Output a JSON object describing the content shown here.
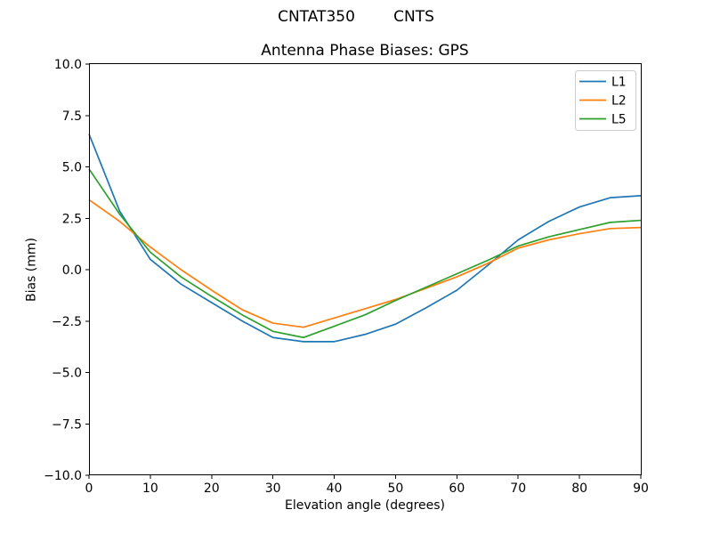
{
  "figure": {
    "suptitle": "CNTAT350        CNTS",
    "background": "#ffffff"
  },
  "chart_data": {
    "type": "line",
    "title": "Antenna Phase Biases: GPS",
    "xlabel": "Elevation angle (degrees)",
    "ylabel": "Bias (mm)",
    "xlim": [
      0,
      90
    ],
    "ylim": [
      -10,
      10
    ],
    "grid": false,
    "axis_color": "#000000",
    "legend": {
      "position": "upper right",
      "border_color": "#cccccc",
      "background": "#ffffff"
    },
    "x": [
      0,
      5,
      10,
      15,
      20,
      25,
      30,
      35,
      40,
      45,
      50,
      55,
      60,
      65,
      70,
      75,
      80,
      85,
      90
    ],
    "series": [
      {
        "name": "L1",
        "color": "#1f77b4",
        "values": [
          6.6,
          2.85,
          0.5,
          -0.7,
          -1.6,
          -2.5,
          -3.3,
          -3.5,
          -3.5,
          -3.15,
          -2.65,
          -1.85,
          -1.0,
          0.2,
          1.45,
          2.35,
          3.05,
          3.5,
          3.6
        ]
      },
      {
        "name": "L2",
        "color": "#ff7f0e",
        "values": [
          3.4,
          2.35,
          1.1,
          0.0,
          -1.0,
          -1.95,
          -2.6,
          -2.8,
          -2.35,
          -1.9,
          -1.45,
          -0.9,
          -0.35,
          0.3,
          1.05,
          1.45,
          1.75,
          2.0,
          2.05
        ]
      },
      {
        "name": "L5",
        "color": "#2ca02c",
        "values": [
          4.9,
          2.7,
          0.85,
          -0.35,
          -1.3,
          -2.2,
          -3.0,
          -3.3,
          -2.75,
          -2.2,
          -1.5,
          -0.85,
          -0.2,
          0.45,
          1.15,
          1.6,
          1.95,
          2.3,
          2.4
        ]
      }
    ],
    "xticks": {
      "values": [
        0,
        10,
        20,
        30,
        40,
        50,
        60,
        70,
        80,
        90
      ],
      "labels": [
        "0",
        "10",
        "20",
        "30",
        "40",
        "50",
        "60",
        "70",
        "80",
        "90"
      ]
    },
    "yticks": {
      "values": [
        10,
        7.5,
        5,
        2.5,
        0,
        -2.5,
        -5,
        -7.5,
        -10
      ],
      "labels": [
        "10.0",
        "7.5",
        "5.0",
        "2.5",
        "0.0",
        "−2.5",
        "−5.0",
        "−7.5",
        "−10.0"
      ]
    }
  }
}
